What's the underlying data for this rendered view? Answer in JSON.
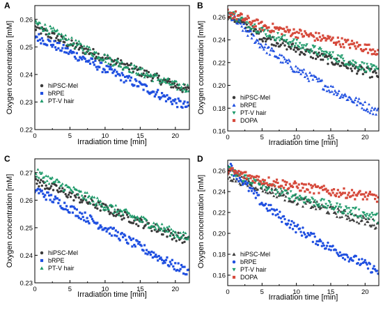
{
  "chart_data": [
    {
      "panel": "A",
      "type": "scatter",
      "xlabel": "Irradiation time [min]",
      "ylabel": "Oxygen concentration [mM]",
      "xlim": [
        0,
        22
      ],
      "ylim": [
        0.22,
        0.265
      ],
      "xticks": [
        0,
        5,
        10,
        15,
        20
      ],
      "yticks": [
        0.22,
        0.23,
        0.24,
        0.25,
        0.26
      ],
      "ytick_labels": [
        "0.22",
        "0.23",
        "0.24",
        "0.25",
        "0.26"
      ],
      "legend": "bottom-left",
      "series": [
        {
          "name": "hiPSC-Mel",
          "marker": "circle",
          "color": "#3a3a3a",
          "x": [
            0,
            5,
            10,
            15,
            20,
            22
          ],
          "y": [
            0.257,
            0.251,
            0.246,
            0.241,
            0.236,
            0.234
          ]
        },
        {
          "name": "bRPE",
          "marker": "square",
          "color": "#1f4fe0",
          "x": [
            0,
            5,
            10,
            15,
            20,
            22
          ],
          "y": [
            0.254,
            0.248,
            0.242,
            0.236,
            0.23,
            0.228
          ]
        },
        {
          "name": "PT-V hair",
          "marker": "triangle-up",
          "color": "#1e9a6a",
          "x": [
            0,
            5,
            10,
            15,
            20,
            22
          ],
          "y": [
            0.259,
            0.252,
            0.246,
            0.241,
            0.236,
            0.235
          ]
        }
      ]
    },
    {
      "panel": "B",
      "type": "scatter",
      "xlabel": "Irradiation time [min]",
      "ylabel": "Oxygen concentration [mM]",
      "xlim": [
        0,
        22
      ],
      "ylim": [
        0.16,
        0.27
      ],
      "xticks": [
        0,
        5,
        10,
        15,
        20
      ],
      "yticks": [
        0.16,
        0.18,
        0.2,
        0.22,
        0.24,
        0.26
      ],
      "ytick_labels": [
        "0.16",
        "0.18",
        "0.20",
        "0.22",
        "0.24",
        "0.26"
      ],
      "legend": "bottom-left",
      "series": [
        {
          "name": "hiPSC-Mel",
          "marker": "circle",
          "color": "#3a3a3a",
          "x": [
            0,
            5,
            10,
            15,
            20,
            22
          ],
          "y": [
            0.262,
            0.243,
            0.232,
            0.222,
            0.212,
            0.209
          ]
        },
        {
          "name": "bRPE",
          "marker": "triangle-up",
          "color": "#1f4fe0",
          "x": [
            0,
            5,
            10,
            15,
            20,
            22
          ],
          "y": [
            0.263,
            0.235,
            0.214,
            0.197,
            0.182,
            0.176
          ]
        },
        {
          "name": "PT-V hair",
          "marker": "triangle-down",
          "color": "#1e9a6a",
          "x": [
            0,
            5,
            10,
            15,
            20,
            22
          ],
          "y": [
            0.264,
            0.248,
            0.236,
            0.226,
            0.216,
            0.212
          ]
        },
        {
          "name": "DOPA",
          "marker": "square",
          "color": "#d64a3c",
          "x": [
            0,
            5,
            10,
            15,
            20,
            22
          ],
          "y": [
            0.264,
            0.252,
            0.246,
            0.24,
            0.233,
            0.23
          ]
        }
      ]
    },
    {
      "panel": "C",
      "type": "scatter",
      "xlabel": "Irradiation time [min]",
      "ylabel": "Oxygen concentration [mM]",
      "xlim": [
        0,
        22
      ],
      "ylim": [
        0.23,
        0.275
      ],
      "xticks": [
        0,
        5,
        10,
        15,
        20
      ],
      "yticks": [
        0.23,
        0.24,
        0.25,
        0.26,
        0.27
      ],
      "ytick_labels": [
        "0.23",
        "0.24",
        "0.25",
        "0.26",
        "0.27"
      ],
      "legend": "bottom-left",
      "series": [
        {
          "name": "hiPSC-Mel",
          "marker": "circle",
          "color": "#3a3a3a",
          "x": [
            0,
            5,
            10,
            15,
            20,
            22
          ],
          "y": [
            0.267,
            0.262,
            0.257,
            0.252,
            0.247,
            0.245
          ]
        },
        {
          "name": "bRPE",
          "marker": "square",
          "color": "#1f4fe0",
          "x": [
            0,
            5,
            10,
            15,
            20,
            22
          ],
          "y": [
            0.264,
            0.257,
            0.25,
            0.243,
            0.236,
            0.234
          ]
        },
        {
          "name": "PT-V hair",
          "marker": "triangle-up",
          "color": "#1e9a6a",
          "x": [
            0,
            5,
            10,
            15,
            20,
            22
          ],
          "y": [
            0.27,
            0.264,
            0.258,
            0.253,
            0.248,
            0.246
          ]
        }
      ]
    },
    {
      "panel": "D",
      "type": "scatter",
      "xlabel": "Irradiation time [min]",
      "ylabel": "Oxygen concentration [mM]",
      "xlim": [
        0,
        22
      ],
      "ylim": [
        0.15,
        0.27
      ],
      "xticks": [
        0,
        5,
        10,
        15,
        20
      ],
      "yticks": [
        0.16,
        0.18,
        0.2,
        0.22,
        0.24,
        0.26
      ],
      "ytick_labels": [
        "0.16",
        "0.18",
        "0.20",
        "0.22",
        "0.24",
        "0.26"
      ],
      "legend": "bottom-left",
      "series": [
        {
          "name": "hiPSC-Mel",
          "marker": "triangle-up",
          "color": "#3a3a3a",
          "x": [
            0,
            5,
            10,
            15,
            20,
            22
          ],
          "y": [
            0.255,
            0.244,
            0.232,
            0.222,
            0.212,
            0.208
          ]
        },
        {
          "name": "bRPE",
          "marker": "circle",
          "color": "#1f4fe0",
          "x": [
            0,
            5,
            10,
            15,
            20,
            22
          ],
          "y": [
            0.266,
            0.229,
            0.205,
            0.186,
            0.17,
            0.163
          ]
        },
        {
          "name": "PT-V hair",
          "marker": "triangle-down",
          "color": "#1e9a6a",
          "x": [
            0,
            5,
            10,
            15,
            20,
            22
          ],
          "y": [
            0.26,
            0.246,
            0.235,
            0.226,
            0.218,
            0.214
          ]
        },
        {
          "name": "DOPA",
          "marker": "square",
          "color": "#d64a3c",
          "x": [
            0,
            5,
            10,
            15,
            20,
            22
          ],
          "y": [
            0.26,
            0.251,
            0.245,
            0.24,
            0.236,
            0.234
          ]
        }
      ]
    }
  ]
}
